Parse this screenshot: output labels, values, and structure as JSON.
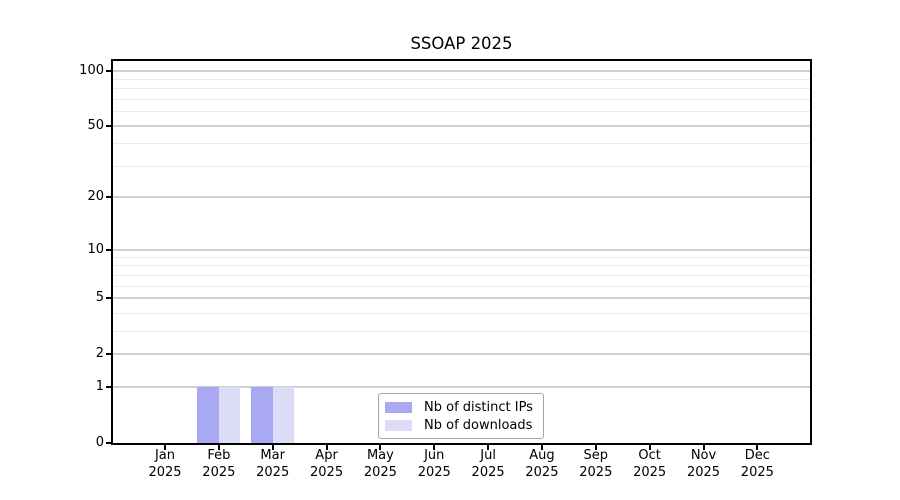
{
  "chart_data": {
    "type": "bar",
    "title": "SSOAP 2025",
    "categories": [
      "Jan 2025",
      "Feb 2025",
      "Mar 2025",
      "Apr 2025",
      "May 2025",
      "Jun 2025",
      "Jul 2025",
      "Aug 2025",
      "Sep 2025",
      "Oct 2025",
      "Nov 2025",
      "Dec 2025"
    ],
    "series": [
      {
        "name": "Nb of distinct IPs",
        "color": "#a9a9f3",
        "values": [
          0,
          1,
          1,
          0,
          0,
          0,
          0,
          0,
          0,
          0,
          0,
          0
        ]
      },
      {
        "name": "Nb of downloads",
        "color": "#dcdcf7",
        "values": [
          0,
          1,
          1,
          0,
          0,
          0,
          0,
          0,
          0,
          0,
          0,
          0
        ]
      }
    ],
    "xlabel": "",
    "ylabel": "",
    "yscale": "log1p",
    "yticks": [
      0,
      1,
      2,
      5,
      10,
      20,
      50,
      100
    ],
    "minor_yticks": [
      3,
      4,
      6,
      7,
      8,
      9,
      30,
      40,
      60,
      70,
      80,
      90
    ],
    "ylim": [
      0,
      113
    ],
    "grid": "horizontal",
    "legend_position": "bottom-center-inside",
    "colors": {
      "major_gridline": "#cfcfcf",
      "minor_gridline": "#ebebeb",
      "axis": "#000000",
      "background": "#ffffff"
    }
  }
}
